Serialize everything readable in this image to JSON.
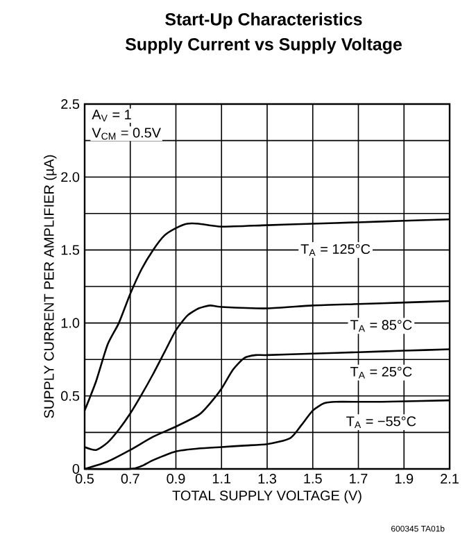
{
  "chart_data": {
    "type": "line",
    "title": "Start-Up Characteristics",
    "subtitle": "Supply Current vs Supply Voltage",
    "xlabel": "TOTAL SUPPLY VOLTAGE (V)",
    "ylabel": "SUPPLY CURRENT PER AMPLIFIER (µA)",
    "xlim": [
      0.5,
      2.1
    ],
    "ylim": [
      0,
      2.5
    ],
    "xticks": [
      0.5,
      0.7,
      0.9,
      1.1,
      1.3,
      1.5,
      1.7,
      1.9,
      2.1
    ],
    "yticks": [
      0,
      {
        "value": 0.25,
        "label": null
      },
      0.5,
      {
        "value": 0.75,
        "label": null
      },
      {
        "value": 1,
        "label": "1.0"
      },
      {
        "value": 1.25,
        "label": null
      },
      1.5,
      {
        "value": 1.75,
        "label": null
      },
      {
        "value": 2,
        "label": "2.0"
      },
      {
        "value": 2.25,
        "label": null
      },
      2.5
    ],
    "grid": true,
    "marker": "none",
    "line_style": "solid",
    "series": [
      {
        "color": "#000000",
        "x": [
          0.5,
          0.55,
          0.6,
          0.65,
          0.7,
          0.75,
          0.8,
          0.85,
          0.9,
          0.95,
          1.0,
          1.1,
          1.3,
          1.5,
          1.7,
          1.9,
          2.1
        ],
        "values": [
          0.4,
          0.6,
          0.85,
          1.0,
          1.2,
          1.37,
          1.5,
          1.6,
          1.65,
          1.68,
          1.68,
          1.66,
          1.67,
          1.68,
          1.69,
          1.7,
          1.71
        ]
      },
      {
        "color": "#000000",
        "x": [
          0.5,
          0.55,
          0.6,
          0.65,
          0.7,
          0.75,
          0.8,
          0.85,
          0.9,
          0.95,
          1.0,
          1.05,
          1.1,
          1.3,
          1.5,
          1.7,
          1.9,
          2.1
        ],
        "values": [
          0.15,
          0.13,
          0.18,
          0.27,
          0.38,
          0.51,
          0.65,
          0.8,
          0.95,
          1.05,
          1.1,
          1.12,
          1.11,
          1.1,
          1.12,
          1.13,
          1.14,
          1.15
        ]
      },
      {
        "color": "#000000",
        "x": [
          0.5,
          0.6,
          0.7,
          0.8,
          0.9,
          1.0,
          1.05,
          1.1,
          1.15,
          1.2,
          1.25,
          1.3,
          1.5,
          1.7,
          1.9,
          2.1
        ],
        "values": [
          0.0,
          0.05,
          0.13,
          0.22,
          0.29,
          0.37,
          0.45,
          0.55,
          0.68,
          0.76,
          0.78,
          0.78,
          0.79,
          0.8,
          0.81,
          0.82
        ]
      },
      {
        "color": "#000000",
        "x": [
          0.5,
          0.7,
          0.75,
          0.8,
          0.9,
          1.0,
          1.1,
          1.2,
          1.3,
          1.4,
          1.45,
          1.5,
          1.55,
          1.6,
          1.8,
          2.1
        ],
        "values": [
          0.0,
          0.0,
          0.02,
          0.06,
          0.12,
          0.14,
          0.15,
          0.16,
          0.17,
          0.21,
          0.3,
          0.4,
          0.45,
          0.46,
          0.46,
          0.47
        ]
      }
    ],
    "annotations": [
      "A$_{V}$ = 1",
      "V$_{CM}$ = 0.5V",
      "T$_{A}$ = 125°C",
      "T$_{A}$ = 85°C",
      "T$_{A}$ = 25°C",
      "T$_{A}$ = −55°C",
      "600345 TA01b"
    ]
  }
}
